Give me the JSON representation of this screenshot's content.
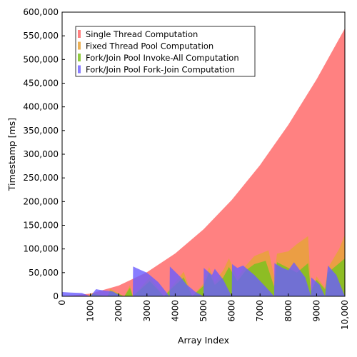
{
  "chart_data": {
    "type": "area",
    "title": "",
    "xlabel": "Array Index",
    "ylabel": "Timestamp [ms]",
    "xlim": [
      0,
      10000
    ],
    "ylim": [
      0,
      600000
    ],
    "x_ticks": [
      "0",
      "1000",
      "2000",
      "3000",
      "4000",
      "5000",
      "6000",
      "7000",
      "8000",
      "9000",
      "10,000"
    ],
    "y_ticks": [
      "0",
      "50,000",
      "100,000",
      "150,000",
      "200,000",
      "250,000",
      "300,000",
      "350,000",
      "400,000",
      "450,000",
      "500,000",
      "550,000",
      "600,000"
    ],
    "grid": false,
    "legend_position": "top-left",
    "series": [
      {
        "name": "Single Thread Computation",
        "color": "#ff6b6b",
        "opacity": 0.85,
        "x": [
          0,
          1000,
          2000,
          3000,
          4000,
          5000,
          6000,
          7000,
          8000,
          9000,
          10000
        ],
        "y": [
          0,
          5600,
          22600,
          50900,
          90500,
          141400,
          203600,
          277100,
          362000,
          458100,
          565600
        ]
      },
      {
        "name": "Fixed Thread Pool Computation",
        "color": "#e8a33a",
        "opacity": 0.85,
        "x": [
          0,
          900,
          1100,
          1600,
          1700,
          2200,
          2400,
          2500,
          3100,
          3600,
          3900,
          4300,
          4600,
          5000,
          5200,
          5400,
          5700,
          5900,
          6200,
          6500,
          6800,
          7300,
          7500,
          7600,
          8000,
          8300,
          8700,
          8800,
          9000,
          9300,
          9400,
          9800,
          10000
        ],
        "y": [
          0,
          0,
          8000,
          0,
          16000,
          0,
          24000,
          0,
          40000,
          0,
          22000,
          52000,
          0,
          27000,
          62000,
          30000,
          55000,
          80000,
          40000,
          65000,
          85000,
          97000,
          40000,
          90000,
          95000,
          110000,
          127000,
          12000,
          42000,
          18000,
          60000,
          100000,
          130000
        ]
      },
      {
        "name": "Fork/Join Pool Invoke-All Computation",
        "color": "#7dc21e",
        "opacity": 0.85,
        "x": [
          0,
          900,
          1100,
          1600,
          1700,
          2200,
          2400,
          2500,
          3100,
          3600,
          3900,
          4300,
          4600,
          5000,
          5200,
          5400,
          5700,
          5900,
          6200,
          6500,
          6800,
          7200,
          7500,
          7600,
          8000,
          8300,
          8700,
          8800,
          9000,
          9300,
          9400,
          9800,
          10000
        ],
        "y": [
          0,
          0,
          5000,
          0,
          12000,
          0,
          18000,
          0,
          32000,
          0,
          18000,
          40000,
          0,
          22000,
          50000,
          24000,
          40000,
          62000,
          32000,
          55000,
          68000,
          75000,
          20000,
          72000,
          60000,
          50000,
          70000,
          10000,
          35000,
          15000,
          50000,
          70000,
          80000
        ]
      },
      {
        "name": "Fork/Join Pool Fork-Join Computation",
        "color": "#6a5cff",
        "opacity": 0.8,
        "x": [
          0,
          300,
          700,
          1000,
          1200,
          1300,
          1500,
          1700,
          1800,
          2100,
          2500,
          2510,
          2800,
          3000,
          3400,
          3800,
          3810,
          4200,
          4400,
          4700,
          5000,
          5010,
          5300,
          5400,
          5700,
          6000,
          6010,
          6200,
          6400,
          6800,
          7200,
          7500,
          7510,
          7800,
          8000,
          8200,
          8600,
          8800,
          8810,
          9100,
          9300,
          9400,
          9700,
          10000
        ],
        "y": [
          9000,
          8000,
          7000,
          0,
          15000,
          14000,
          12000,
          11000,
          10000,
          0,
          0,
          63000,
          55000,
          50000,
          30000,
          0,
          63000,
          40000,
          25000,
          10000,
          0,
          60000,
          45000,
          58000,
          35000,
          0,
          68000,
          60000,
          65000,
          45000,
          20000,
          0,
          70000,
          60000,
          55000,
          72000,
          40000,
          0,
          40000,
          25000,
          0,
          65000,
          45000,
          0
        ]
      }
    ]
  }
}
